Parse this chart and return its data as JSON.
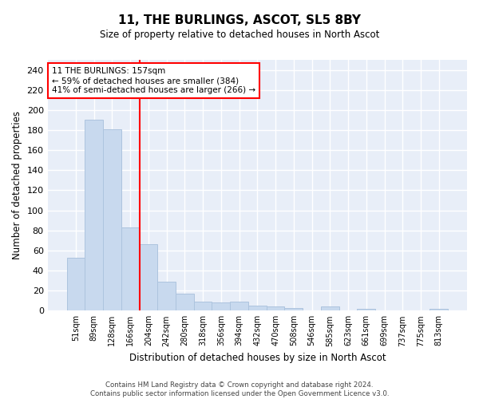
{
  "title": "11, THE BURLINGS, ASCOT, SL5 8BY",
  "subtitle": "Size of property relative to detached houses in North Ascot",
  "xlabel": "Distribution of detached houses by size in North Ascot",
  "ylabel": "Number of detached properties",
  "footer_line1": "Contains HM Land Registry data © Crown copyright and database right 2024.",
  "footer_line2": "Contains public sector information licensed under the Open Government Licence v3.0.",
  "categories": [
    "51sqm",
    "89sqm",
    "128sqm",
    "166sqm",
    "204sqm",
    "242sqm",
    "280sqm",
    "318sqm",
    "356sqm",
    "394sqm",
    "432sqm",
    "470sqm",
    "508sqm",
    "546sqm",
    "585sqm",
    "623sqm",
    "661sqm",
    "699sqm",
    "737sqm",
    "775sqm",
    "813sqm"
  ],
  "values": [
    53,
    190,
    181,
    83,
    66,
    29,
    17,
    9,
    8,
    9,
    5,
    4,
    3,
    0,
    4,
    0,
    2,
    0,
    0,
    0,
    2
  ],
  "bar_color": "#c8d9ee",
  "bar_edge_color": "#adc4de",
  "figure_background": "#ffffff",
  "axes_background": "#e8eef8",
  "grid_color": "#ffffff",
  "vline_x": 3.5,
  "vline_color": "red",
  "annotation_line1": "11 THE BURLINGS: 157sqm",
  "annotation_line2": "← 59% of detached houses are smaller (384)",
  "annotation_line3": "41% of semi-detached houses are larger (266) →",
  "annotation_box_color": "white",
  "annotation_box_edge": "red",
  "ylim": [
    0,
    250
  ],
  "yticks": [
    0,
    20,
    40,
    60,
    80,
    100,
    120,
    140,
    160,
    180,
    200,
    220,
    240
  ]
}
